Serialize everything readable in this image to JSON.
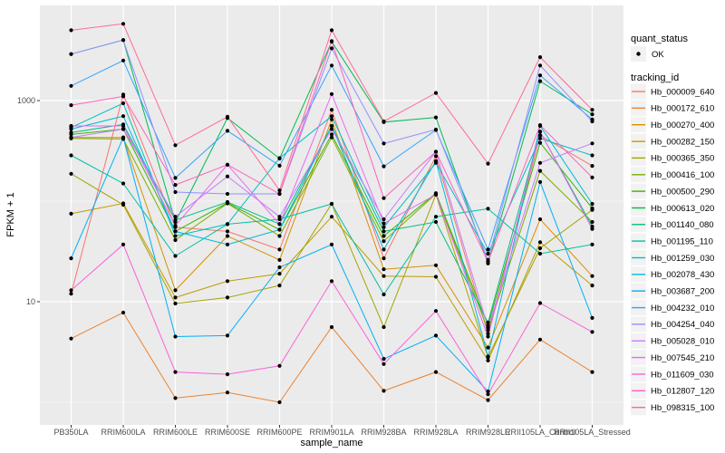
{
  "figure": {
    "background": "#FFFFFF",
    "panel_bg": "#EBEBEB",
    "grid_color": "#FFFFFF",
    "axis_tick_color": "#333333",
    "tick_label_color": "#4D4D4D",
    "title_color": "#000000",
    "legend_key_bg": "#F2F2F2",
    "point_color": "#000000"
  },
  "chart_data": {
    "type": "line",
    "title": "",
    "xlabel": "sample_name",
    "ylabel": "FPKM + 1",
    "y_scale": "log10",
    "grid": true,
    "legend_position": "right",
    "y_major_ticks": [
      {
        "value": 10,
        "label": "10"
      },
      {
        "value": 1000,
        "label": "1000"
      }
    ],
    "y_minor_gridlines": [
      1,
      100
    ],
    "ylim": [
      0.6,
      8800
    ],
    "categories": [
      "PB350LA",
      "RRIM600LA",
      "RRIM600LE",
      "RRIM600SE",
      "RRIM600PE",
      "RRIM901LA",
      "RRIM928BA",
      "RRIM928LA",
      "RRIM928LE",
      "RRII105LA_Control",
      "RRII105LA_Stressed"
    ],
    "series": [
      {
        "name": "Hb_000009_640",
        "color": "#F8766D",
        "values": [
          12,
          1150,
          55,
          50,
          33,
          810,
          27,
          280,
          4.8,
          450,
          224
        ]
      },
      {
        "name": "Hb_000172_610",
        "color": "#EA8331",
        "values": [
          4.3,
          7.8,
          1.1,
          1.25,
          1.0,
          5.6,
          1.3,
          2.0,
          1.05,
          4.2,
          2.0
        ]
      },
      {
        "name": "Hb_000270_400",
        "color": "#D89000",
        "values": [
          430,
          430,
          13,
          45,
          26,
          650,
          21,
          23,
          3.5,
          66,
          18
        ]
      },
      {
        "name": "Hb_000282_150",
        "color": "#C09B00",
        "values": [
          75,
          95,
          11,
          16,
          19,
          70,
          18,
          17.7,
          2.6,
          39,
          14.5
        ]
      },
      {
        "name": "Hb_000365_350",
        "color": "#A3A500",
        "values": [
          187,
          92,
          9.6,
          11,
          14.5,
          94,
          5.6,
          116,
          2.8,
          34,
          82
        ]
      },
      {
        "name": "Hb_000416_100",
        "color": "#7CAE00",
        "values": [
          420,
          415,
          41,
          95,
          45,
          430,
          40,
          118,
          5.2,
          200,
          62
        ]
      },
      {
        "name": "Hb_000500_290",
        "color": "#39B600",
        "values": [
          460,
          520,
          50,
          96,
          52,
          460,
          45,
          120,
          5.8,
          380,
          85
        ]
      },
      {
        "name": "Hb_000613_020",
        "color": "#00BB4E",
        "values": [
          2900,
          4000,
          62,
          670,
          265,
          3850,
          610,
          680,
          24,
          1560,
          730
        ]
      },
      {
        "name": "Hb_001140_080",
        "color": "#00BF7D",
        "values": [
          480,
          580,
          65,
          98,
          59,
          560,
          50,
          62,
          6.2,
          490,
          56
        ]
      },
      {
        "name": "Hb_001195_110",
        "color": "#00C1A3",
        "values": [
          285,
          150,
          28.5,
          59,
          66,
          94,
          11.8,
          70,
          84,
          30,
          37
        ]
      },
      {
        "name": "Hb_001259_030",
        "color": "#00BFC4",
        "values": [
          540,
          940,
          45,
          59,
          268,
          700,
          55,
          240,
          30,
          420,
          285
        ]
      },
      {
        "name": "Hb_002078_430",
        "color": "#00BAE0",
        "values": [
          520,
          700,
          50,
          37,
          52,
          560,
          33,
          250,
          2.85,
          560,
          94
        ]
      },
      {
        "name": "Hb_003687_200",
        "color": "#00B0F6",
        "values": [
          27,
          430,
          4.5,
          4.6,
          22,
          37,
          2.7,
          4.6,
          1.28,
          155,
          6.9
        ]
      },
      {
        "name": "Hb_004232_010",
        "color": "#35A2FF",
        "values": [
          1400,
          2500,
          170,
          500,
          225,
          2230,
          222,
          510,
          33,
          1780,
          650
        ]
      },
      {
        "name": "Hb_004254_040",
        "color": "#9590FF",
        "values": [
          2900,
          4000,
          123,
          118,
          118,
          3300,
          374,
          515,
          26,
          2230,
          620
        ]
      },
      {
        "name": "Hb_005028_010",
        "color": "#C77CFF",
        "values": [
          430,
          520,
          70,
          176,
          70,
          520,
          66,
          310,
          5.5,
          240,
          375
        ]
      },
      {
        "name": "Hb_007545_210",
        "color": "#E76BF3",
        "values": [
          560,
          560,
          57,
          230,
          59,
          1160,
          60,
          116,
          4.5,
          490,
          53
        ]
      },
      {
        "name": "Hb_011609_030",
        "color": "#FA62DB",
        "values": [
          13,
          37,
          2.0,
          1.9,
          2.3,
          16,
          2.4,
          8.1,
          1.2,
          9.7,
          5.0
        ]
      },
      {
        "name": "Hb_012807_120",
        "color": "#FF62BC",
        "values": [
          900,
          1100,
          145,
          230,
          118,
          3900,
          107,
          310,
          25,
          570,
          172
        ]
      },
      {
        "name": "Hb_098315_100",
        "color": "#FF6A98",
        "values": [
          5000,
          5800,
          360,
          690,
          128,
          5000,
          620,
          1190,
          236,
          2700,
          810
        ]
      }
    ]
  },
  "legend": {
    "quant_status": {
      "title": "quant_status",
      "items": [
        {
          "label": "OK",
          "shape": "point",
          "color": "#000000"
        }
      ]
    },
    "tracking_id": {
      "title": "tracking_id"
    }
  }
}
